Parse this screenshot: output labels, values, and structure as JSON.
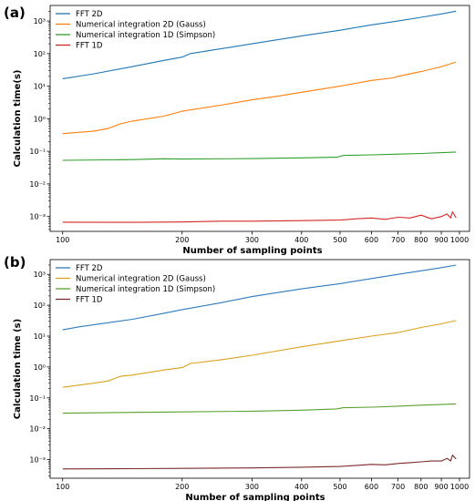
{
  "chart_data": [
    {
      "type": "line",
      "panel_label": "(a)",
      "xlabel": "Number of sampling points",
      "ylabel": "Calculation time(s)",
      "xscale": "log",
      "yscale": "log",
      "xlim": [
        93,
        1060
      ],
      "ylim": [
        0.00035,
        3000
      ],
      "xticks": [
        100,
        200,
        300,
        400,
        500,
        600,
        700,
        800,
        900,
        1000
      ],
      "yticks": [
        0.001,
        0.01,
        0.1,
        1,
        10,
        100,
        1000
      ],
      "ytick_labels": [
        "10⁻³",
        "10⁻²",
        "10⁻¹",
        "10⁰",
        "10¹",
        "10²",
        "10³"
      ],
      "grid": false,
      "legend_position": "upper-left",
      "series": [
        {
          "name": "FFT 2D",
          "color": "#1f77b4",
          "x": [
            100,
            120,
            150,
            180,
            200,
            210,
            250,
            300,
            400,
            500,
            600,
            700,
            800,
            900,
            980
          ],
          "y": [
            17,
            24,
            40,
            62,
            78,
            100,
            140,
            200,
            350,
            520,
            760,
            1000,
            1300,
            1650,
            2000
          ]
        },
        {
          "name": "Numerical integration 2D (Gauss)",
          "color": "#ff7f0e",
          "x": [
            100,
            120,
            130,
            140,
            150,
            180,
            200,
            250,
            300,
            350,
            400,
            500,
            600,
            680,
            700,
            800,
            900,
            980
          ],
          "y": [
            0.35,
            0.42,
            0.5,
            0.7,
            0.85,
            1.2,
            1.7,
            2.6,
            3.8,
            5.0,
            6.5,
            10,
            15,
            18,
            20,
            28,
            40,
            55
          ]
        },
        {
          "name": "Numerical integration 1D (Simpson)",
          "color": "#2ca02c",
          "x": [
            100,
            150,
            180,
            200,
            300,
            400,
            490,
            510,
            600,
            700,
            800,
            980
          ],
          "y": [
            0.053,
            0.056,
            0.059,
            0.058,
            0.06,
            0.063,
            0.066,
            0.075,
            0.078,
            0.082,
            0.086,
            0.095
          ]
        },
        {
          "name": "FFT 1D",
          "color": "#d62728",
          "x": [
            100,
            150,
            200,
            250,
            300,
            400,
            500,
            550,
            600,
            650,
            700,
            750,
            800,
            850,
            900,
            930,
            950,
            960,
            980
          ],
          "y": [
            0.00067,
            0.00066,
            0.00068,
            0.00072,
            0.00072,
            0.00075,
            0.00078,
            0.00085,
            0.0009,
            0.00082,
            0.00095,
            0.0009,
            0.0011,
            0.00085,
            0.001,
            0.0012,
            0.0009,
            0.0014,
            0.00092
          ]
        }
      ]
    },
    {
      "type": "line",
      "panel_label": "(b)",
      "xlabel": "Number of sampling points",
      "ylabel": "Calculation time (s)",
      "xscale": "log",
      "yscale": "log",
      "xlim": [
        93,
        1060
      ],
      "ylim": [
        0.00025,
        3000
      ],
      "xticks": [
        100,
        200,
        300,
        400,
        500,
        600,
        700,
        800,
        900,
        1000
      ],
      "yticks": [
        0.001,
        0.01,
        0.1,
        1,
        10,
        100,
        1000
      ],
      "ytick_labels": [
        "10⁻³",
        "10⁻²",
        "10⁻¹",
        "10⁰",
        "10¹",
        "10²",
        "10³"
      ],
      "grid": false,
      "legend_position": "upper-left",
      "series": [
        {
          "name": "FFT 2D",
          "color": "#2f7bbd",
          "x": [
            100,
            110,
            150,
            180,
            200,
            250,
            300,
            400,
            500,
            600,
            700,
            800,
            900,
            980
          ],
          "y": [
            16,
            20,
            35,
            55,
            72,
            120,
            190,
            340,
            500,
            730,
            1000,
            1300,
            1650,
            2000
          ]
        },
        {
          "name": "Numerical integration 2D (Gauss)",
          "color": "#dba21e",
          "x": [
            100,
            120,
            130,
            140,
            150,
            180,
            200,
            210,
            250,
            300,
            400,
            500,
            600,
            700,
            800,
            900,
            980
          ],
          "y": [
            0.22,
            0.3,
            0.35,
            0.5,
            0.55,
            0.8,
            0.95,
            1.3,
            1.7,
            2.4,
            4.5,
            7.0,
            10,
            13,
            19,
            25,
            32
          ]
        },
        {
          "name": "Numerical integration 1D (Simpson)",
          "color": "#5aa02c",
          "x": [
            100,
            200,
            300,
            400,
            490,
            510,
            600,
            700,
            800,
            980
          ],
          "y": [
            0.032,
            0.035,
            0.037,
            0.04,
            0.044,
            0.048,
            0.05,
            0.054,
            0.058,
            0.064
          ]
        },
        {
          "name": "FFT 1D",
          "color": "#7b2a2a",
          "x": [
            100,
            150,
            200,
            300,
            400,
            500,
            550,
            600,
            650,
            700,
            750,
            800,
            850,
            900,
            930,
            950,
            960,
            980
          ],
          "y": [
            0.0005,
            0.00051,
            0.00052,
            0.00054,
            0.00057,
            0.0006,
            0.00065,
            0.0007,
            0.00068,
            0.00075,
            0.0008,
            0.00085,
            0.0009,
            0.0009,
            0.0011,
            0.0009,
            0.0014,
            0.00105
          ]
        }
      ]
    }
  ]
}
